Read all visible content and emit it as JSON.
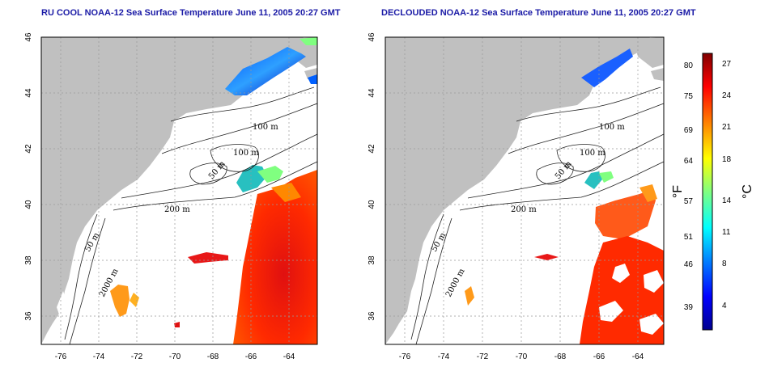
{
  "panels": [
    {
      "id": "left",
      "title": "RU COOL NOAA-12 Sea Surface Temperature June 11, 2005 20:27 GMT"
    },
    {
      "id": "right",
      "title": "DECLOUDED NOAA-12 Sea Surface Temperature June 11, 2005 20:27 GMT"
    }
  ],
  "axes": {
    "x_ticks": [
      "-76",
      "-74",
      "-72",
      "-70",
      "-68",
      "-66",
      "-64"
    ],
    "y_ticks": [
      "46",
      "44",
      "42",
      "40",
      "38",
      "36"
    ],
    "x_range": [
      -77.2,
      -62.9
    ],
    "y_range": [
      35.0,
      46.0
    ],
    "grid": "dotted"
  },
  "contour_labels": [
    "100 m",
    "100 m",
    "50 m",
    "200 m",
    "50 m",
    "2000 m"
  ],
  "colorbar": {
    "fahrenheit_ticks": [
      "80",
      "75",
      "69",
      "64",
      "57",
      "51",
      "46",
      "39"
    ],
    "celsius_ticks": [
      "27",
      "24",
      "21",
      "18",
      "14",
      "11",
      "8",
      "4"
    ],
    "fahrenheit_unit": "°F",
    "celsius_unit": "°C",
    "colormap": [
      "#00008f",
      "#0000ff",
      "#0080ff",
      "#00ffff",
      "#80ff80",
      "#ffff00",
      "#ff8000",
      "#ff0000",
      "#800000"
    ]
  },
  "colors": {
    "land": "#c0c0c0",
    "water_background": "#ffffff",
    "title_text": "#1a1aa6"
  }
}
